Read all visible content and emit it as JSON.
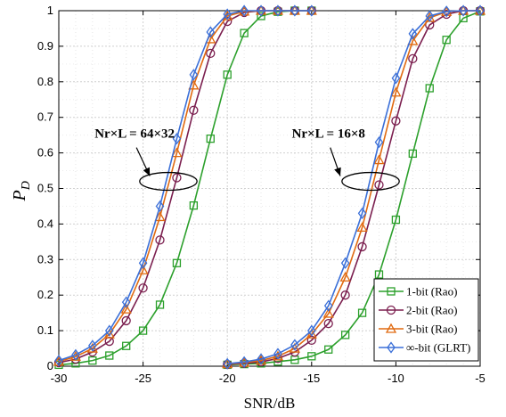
{
  "chart_data": {
    "type": "line",
    "xlabel": "SNR/dB",
    "ylabel": "P",
    "ylabel_sub": "D",
    "xlim": [
      -30,
      -5
    ],
    "ylim": [
      0,
      1
    ],
    "xticks": [
      -30,
      -25,
      -20,
      -15,
      -10,
      -5
    ],
    "xtick_labels": [
      "-30",
      "-25",
      "-20",
      "-15",
      "-10",
      "-5"
    ],
    "yticks": [
      0,
      0.1,
      0.2,
      0.3,
      0.4,
      0.5,
      0.6,
      0.7,
      0.8,
      0.9,
      1
    ],
    "ytick_labels": [
      "0",
      "0.1",
      "0.2",
      "0.3",
      "0.4",
      "0.5",
      "0.6",
      "0.7",
      "0.8",
      "0.9",
      "1"
    ],
    "grid": true,
    "legend_position": "bottom-right",
    "annotations": [
      {
        "text": "Nr×L = 64×32",
        "x": -25.5,
        "y": 0.62,
        "arrow_to": [
          -24.6,
          0.52
        ]
      },
      {
        "text": "Nr×L = 16×8",
        "x": -14.0,
        "y": 0.62,
        "arrow_to": [
          -13.3,
          0.52
        ]
      }
    ],
    "ellipses": [
      {
        "cx": -23.5,
        "cy": 0.52,
        "rx": 1.7,
        "ry": 0.025
      },
      {
        "cx": -11.5,
        "cy": 0.52,
        "rx": 1.7,
        "ry": 0.025
      }
    ],
    "series": [
      {
        "name": "1-bit (Rao)",
        "color": "#2ca02c",
        "marker": "square",
        "segments": [
          {
            "x": [
              -30,
              -29,
              -28,
              -27,
              -26,
              -25,
              -24,
              -23,
              -22,
              -21,
              -20,
              -19,
              -18,
              -17,
              -16,
              -15
            ],
            "y": [
              0.004,
              0.008,
              0.016,
              0.03,
              0.057,
              0.1,
              0.173,
              0.29,
              0.452,
              0.64,
              0.82,
              0.937,
              0.985,
              0.997,
              1.0,
              1.0
            ]
          },
          {
            "x": [
              -20,
              -19,
              -18,
              -17,
              -16,
              -15,
              -14,
              -13,
              -12,
              -11,
              -10,
              -9,
              -8,
              -7,
              -6,
              -5
            ],
            "y": [
              0.004,
              0.006,
              0.008,
              0.013,
              0.018,
              0.028,
              0.047,
              0.088,
              0.15,
              0.258,
              0.412,
              0.598,
              0.782,
              0.918,
              0.979,
              0.998
            ]
          }
        ]
      },
      {
        "name": "2-bit (Rao)",
        "color": "#7b1f4f",
        "marker": "circle",
        "segments": [
          {
            "x": [
              -30,
              -29,
              -28,
              -27,
              -26,
              -25,
              -24,
              -23,
              -22,
              -21,
              -20,
              -19,
              -18,
              -17,
              -16,
              -15
            ],
            "y": [
              0.01,
              0.02,
              0.04,
              0.07,
              0.128,
              0.22,
              0.355,
              0.53,
              0.72,
              0.88,
              0.97,
              0.995,
              1.0,
              1.0,
              1.0,
              1.0
            ]
          },
          {
            "x": [
              -20,
              -19,
              -18,
              -17,
              -16,
              -15,
              -14,
              -13,
              -12,
              -11,
              -10,
              -9,
              -8,
              -7,
              -6,
              -5
            ],
            "y": [
              0.005,
              0.008,
              0.012,
              0.022,
              0.04,
              0.073,
              0.12,
              0.2,
              0.336,
              0.51,
              0.69,
              0.865,
              0.96,
              0.99,
              1.0,
              1.0
            ]
          }
        ]
      },
      {
        "name": "3-bit (Rao)",
        "color": "#e06a10",
        "marker": "triangle",
        "segments": [
          {
            "x": [
              -30,
              -29,
              -28,
              -27,
              -26,
              -25,
              -24,
              -23,
              -22,
              -21,
              -20,
              -19,
              -18,
              -17,
              -16,
              -15
            ],
            "y": [
              0.013,
              0.027,
              0.05,
              0.09,
              0.16,
              0.27,
              0.42,
              0.6,
              0.79,
              0.92,
              0.985,
              0.998,
              1.0,
              1.0,
              1.0,
              1.0
            ]
          },
          {
            "x": [
              -20,
              -19,
              -18,
              -17,
              -16,
              -15,
              -14,
              -13,
              -12,
              -11,
              -10,
              -9,
              -8,
              -7,
              -6,
              -5
            ],
            "y": [
              0.006,
              0.01,
              0.016,
              0.028,
              0.05,
              0.09,
              0.148,
              0.25,
              0.39,
              0.58,
              0.77,
              0.915,
              0.98,
              0.997,
              1.0,
              1.0
            ]
          }
        ]
      },
      {
        "name": "∞-bit (GLRT)",
        "color": "#3a6fd8",
        "marker": "diamond",
        "segments": [
          {
            "x": [
              -30,
              -29,
              -28,
              -27,
              -26,
              -25,
              -24,
              -23,
              -22,
              -21,
              -20,
              -19,
              -18,
              -17,
              -16,
              -15
            ],
            "y": [
              0.016,
              0.032,
              0.058,
              0.1,
              0.18,
              0.29,
              0.45,
              0.64,
              0.82,
              0.94,
              0.99,
              1.0,
              1.0,
              1.0,
              1.0,
              1.0
            ]
          },
          {
            "x": [
              -20,
              -19,
              -18,
              -17,
              -16,
              -15,
              -14,
              -13,
              -12,
              -11,
              -10,
              -9,
              -8,
              -7,
              -6,
              -5
            ],
            "y": [
              0.007,
              0.012,
              0.02,
              0.035,
              0.06,
              0.1,
              0.17,
              0.29,
              0.43,
              0.63,
              0.81,
              0.935,
              0.985,
              0.998,
              1.0,
              1.0
            ]
          }
        ]
      }
    ]
  }
}
